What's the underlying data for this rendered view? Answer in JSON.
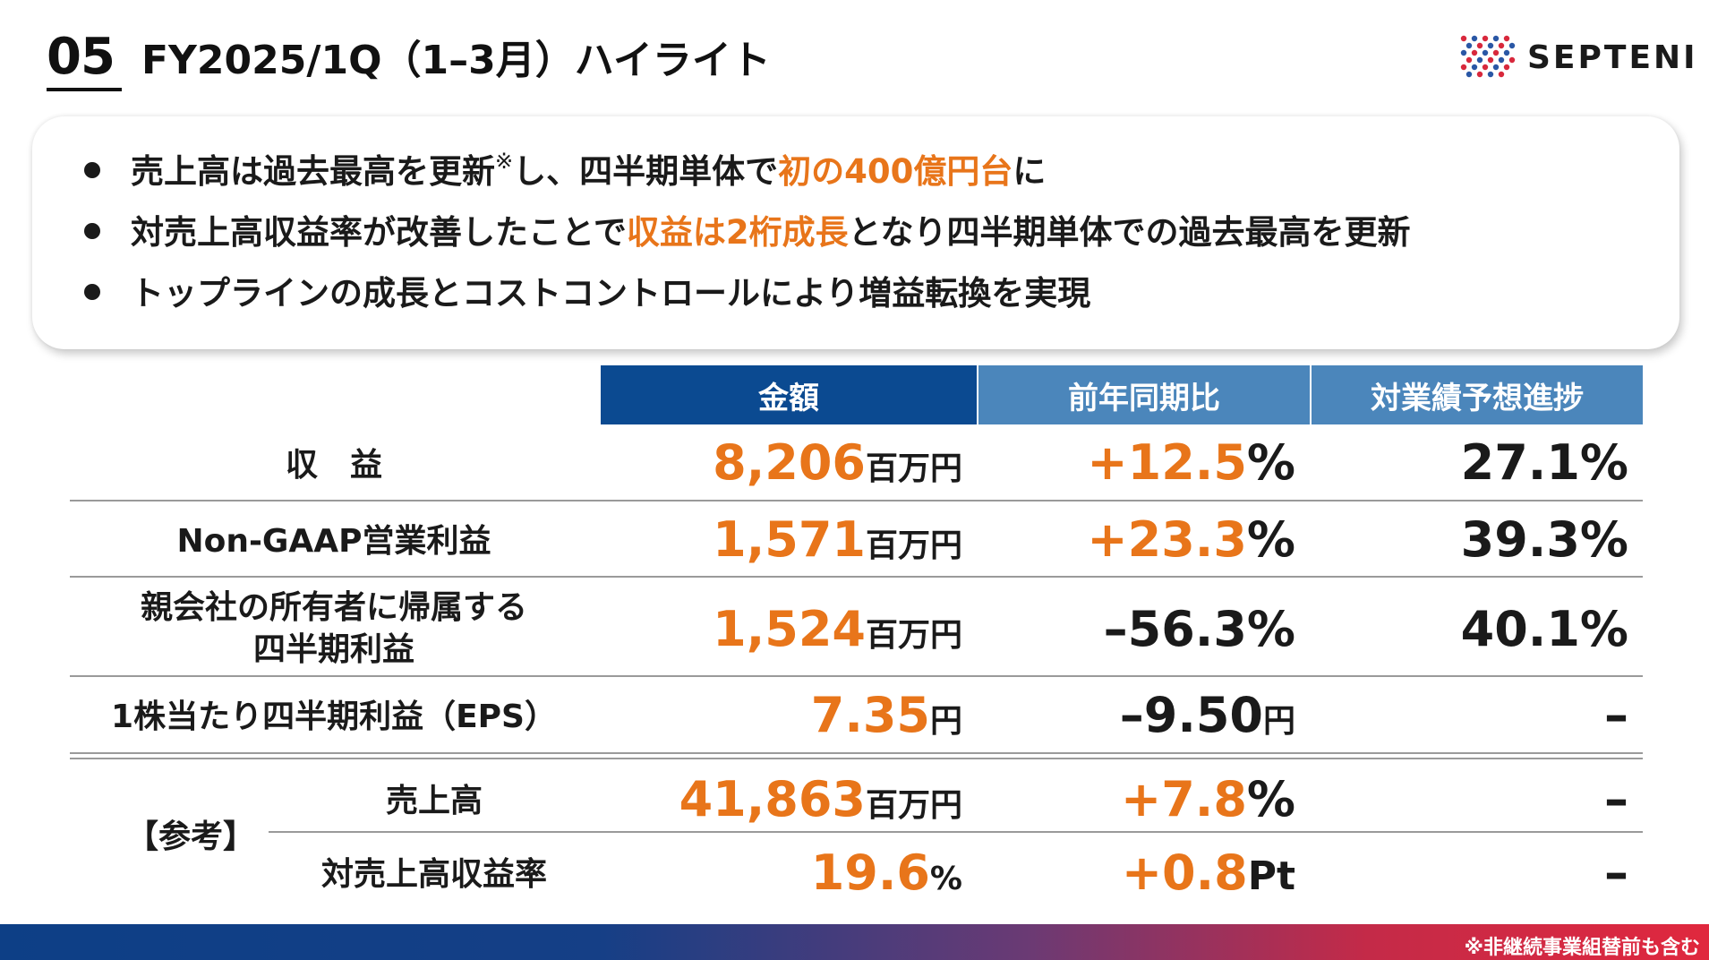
{
  "header": {
    "slide_number": "05",
    "title": "FY2025/1Q（1–3月）ハイライト",
    "logo_text": "SEPTENI"
  },
  "highlights": [
    {
      "pre": "売上高は過去最高を更新",
      "note": "※",
      "mid": "し、四半期単体で",
      "accent": "初の400億円台",
      "post": "に"
    },
    {
      "pre": "対売上高収益率が改善したことで",
      "accent": "収益は2桁成長",
      "post": "となり四半期単体での過去最高を更新"
    },
    {
      "pre": "トップラインの成長とコストコントロールにより増益転換を実現"
    }
  ],
  "table": {
    "headers": [
      "金額",
      "前年同期比",
      "対業績予想進捗"
    ],
    "header_colors": [
      "#0b4a91",
      "#4b86bb",
      "#4b86bb"
    ],
    "rows": [
      {
        "label": "収　益",
        "amount": "8,206",
        "amount_unit": "百万円",
        "yoy": "+12.5",
        "yoy_unit": "%",
        "yoy_color": "orange",
        "progress": "27.1%"
      },
      {
        "label": "Non-GAAP営業利益",
        "amount": "1,571",
        "amount_unit": "百万円",
        "yoy": "+23.3",
        "yoy_unit": "%",
        "yoy_color": "orange",
        "progress": "39.3%"
      },
      {
        "label_line1": "親会社の所有者に帰属する",
        "label_line2": "四半期利益",
        "amount": "1,524",
        "amount_unit": "百万円",
        "yoy": "–56.3",
        "yoy_unit": "%",
        "yoy_color": "black",
        "progress": "40.1%"
      },
      {
        "label": "1株当たり四半期利益（EPS）",
        "amount": "7.35",
        "amount_unit": "円",
        "yoy": "–9.50",
        "yoy_unit": "円",
        "yoy_color": "black",
        "progress": "–"
      }
    ],
    "reference_label": "【参考】",
    "reference_rows": [
      {
        "label": "売上高",
        "amount": "41,863",
        "amount_unit": "百万円",
        "yoy": "+7.8",
        "yoy_unit": "%",
        "yoy_color": "orange",
        "progress": "–"
      },
      {
        "label": "対売上高収益率",
        "amount": "19.6",
        "amount_unit": "%",
        "yoy": "+0.8",
        "yoy_unit": "Pt",
        "yoy_color": "orange",
        "progress": "–"
      }
    ]
  },
  "footer": {
    "note": "※非継続事業組替前も含む"
  },
  "colors": {
    "accent": "#e8751a",
    "header_dark": "#0b4a91",
    "header_light": "#4b86bb"
  }
}
